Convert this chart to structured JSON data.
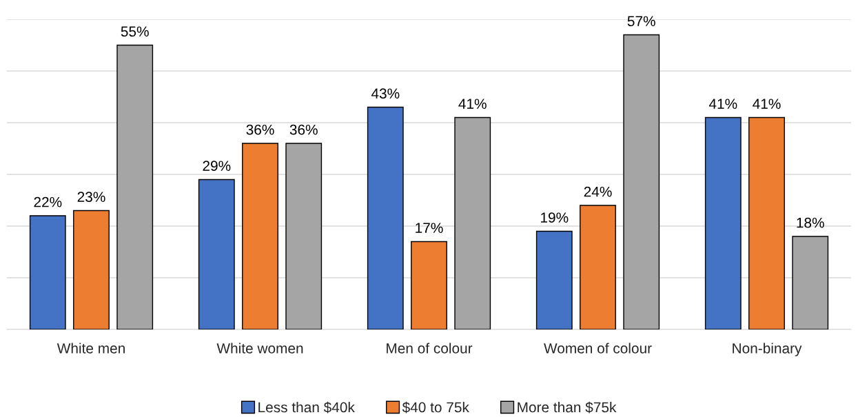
{
  "chart_data": {
    "type": "bar",
    "categories": [
      "White men",
      "White women",
      "Men of colour",
      "Women of colour",
      "Non-binary"
    ],
    "series": [
      {
        "name": "Less than $40k",
        "color": "#4472c4",
        "values": [
          22,
          29,
          43,
          19,
          41
        ],
        "value_labels": [
          "22%",
          "29%",
          "43%",
          "19%",
          "41%"
        ]
      },
      {
        "name": "$40 to 75k",
        "color": "#ed7d31",
        "values": [
          23,
          36,
          17,
          24,
          41
        ],
        "value_labels": [
          "23%",
          "36%",
          "17%",
          "24%",
          "41%"
        ]
      },
      {
        "name": "More than $75k",
        "color": "#a5a5a5",
        "values": [
          55,
          36,
          41,
          57,
          18
        ],
        "value_labels": [
          "55%",
          "36%",
          "41%",
          "57%",
          "18%"
        ]
      }
    ],
    "ylim": [
      0,
      60
    ],
    "yticks": [
      {
        "value": 0,
        "label": null
      },
      {
        "value": 10,
        "label": null
      },
      {
        "value": 20,
        "label": null
      },
      {
        "value": 30,
        "label": null
      },
      {
        "value": 40,
        "label": null
      },
      {
        "value": 50,
        "label": null
      },
      {
        "value": 60,
        "label": null
      }
    ],
    "tick_labels": "x",
    "grid": "y",
    "legend": "bottom"
  }
}
